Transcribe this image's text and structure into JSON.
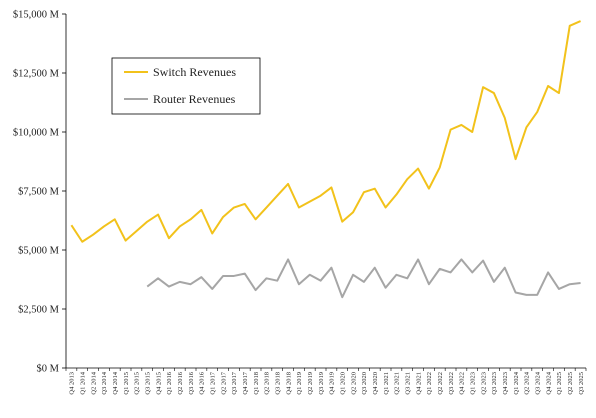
{
  "chart_data": {
    "type": "line",
    "title": "",
    "xlabel": "",
    "ylabel": "",
    "ylim": [
      0,
      15000
    ],
    "yticks": [
      {
        "value": 0,
        "label": "$0 M"
      },
      {
        "value": 2500,
        "label": "$2,500 M"
      },
      {
        "value": 5000,
        "label": "$5,000 M"
      },
      {
        "value": 7500,
        "label": "$7,500 M"
      },
      {
        "value": 10000,
        "label": "$10,000 M"
      },
      {
        "value": 12500,
        "label": "$12,500 M"
      },
      {
        "value": 15000,
        "label": "$15,000 M"
      }
    ],
    "grid": false,
    "legend_position": "top-left",
    "categories": [
      "Q4 2013",
      "Q1 2014",
      "Q2 2014",
      "Q3 2014",
      "Q4 2014",
      "Q1 2015",
      "Q2 2015",
      "Q3 2015",
      "Q4 2015",
      "Q1 2016",
      "Q2 2016",
      "Q3 2016",
      "Q4 2016",
      "Q1 2017",
      "Q2 2017",
      "Q3 2017",
      "Q4 2017",
      "Q1 2018",
      "Q2 2018",
      "Q3 2018",
      "Q4 2018",
      "Q1 2019",
      "Q2 2019",
      "Q3 2019",
      "Q4 2019",
      "Q1 2020",
      "Q2 2020",
      "Q3 2020",
      "Q4 2020",
      "Q1 2021",
      "Q2 2021",
      "Q3 2021",
      "Q4 2021",
      "Q1 2022",
      "Q2 2022",
      "Q3 2022",
      "Q4 2022",
      "Q1 2023",
      "Q2 2023",
      "Q3 2023",
      "Q4 2023",
      "Q1 2024",
      "Q2 2024",
      "Q3 2024",
      "Q4 2024",
      "Q1 2025",
      "Q2 2025",
      "Q3 2025"
    ],
    "series": [
      {
        "name": "Switch Revenues",
        "color": "#F2C21B",
        "values": [
          6050,
          5350,
          5650,
          6000,
          6300,
          5400,
          5800,
          6200,
          6500,
          5500,
          6000,
          6300,
          6700,
          5700,
          6400,
          6800,
          6950,
          6300,
          6800,
          7300,
          7800,
          6800,
          7050,
          7300,
          7650,
          6200,
          6600,
          7450,
          7600,
          6800,
          7350,
          8000,
          8450,
          7600,
          8500,
          10100,
          10300,
          10000,
          11900,
          11650,
          10600,
          8850,
          10200,
          10850,
          11950,
          11650,
          14500,
          14700
        ]
      },
      {
        "name": "Router Revenues",
        "color": "#A6A6A6",
        "values": [
          null,
          null,
          null,
          null,
          null,
          null,
          null,
          3450,
          3800,
          3450,
          3650,
          3550,
          3850,
          3350,
          3900,
          3900,
          4000,
          3300,
          3800,
          3700,
          4600,
          3550,
          3950,
          3700,
          4250,
          3000,
          3950,
          3650,
          4250,
          3400,
          3950,
          3800,
          4600,
          3550,
          4200,
          4050,
          4600,
          4050,
          4550,
          3650,
          4250,
          3200,
          3100,
          3100,
          4050,
          3350,
          3550,
          3600
        ]
      }
    ]
  }
}
